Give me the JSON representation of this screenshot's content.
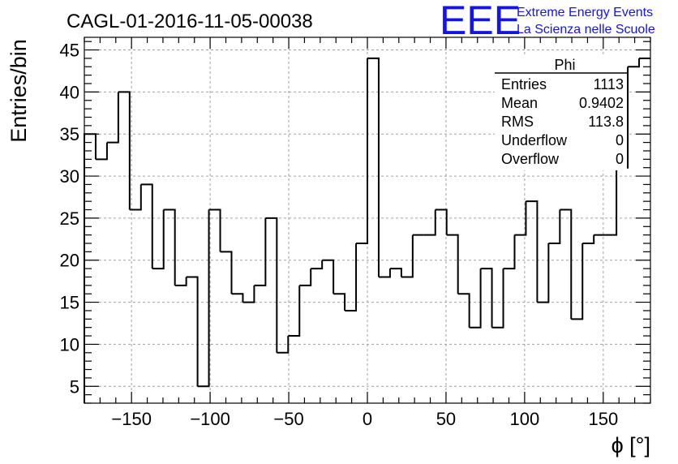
{
  "chart_data": {
    "type": "histogram",
    "title": "CAGL-01-2016-11-05-00038",
    "xlabel": "ϕ [°]",
    "ylabel": "Entries/bin",
    "xlim": [
      -180,
      180
    ],
    "ylim": [
      3,
      46.5
    ],
    "bin_width": 7.2,
    "bin_edges_start": -180,
    "values": [
      35,
      32,
      34,
      40,
      26,
      29,
      19,
      26,
      17,
      18,
      5,
      26,
      21,
      16,
      15,
      17,
      25,
      9,
      11,
      17,
      19,
      20,
      16,
      14,
      22,
      44,
      18,
      19,
      18,
      23,
      23,
      26,
      23,
      16,
      12,
      19,
      12,
      19,
      23,
      27,
      15,
      22,
      26,
      13,
      22,
      23,
      23,
      31,
      43,
      44
    ],
    "x_ticks": [
      -150,
      -100,
      -50,
      0,
      50,
      100,
      150
    ],
    "x_tick_labels": [
      "−150",
      "−100",
      "−50",
      "0",
      "50",
      "100",
      "150"
    ],
    "y_ticks": [
      5,
      10,
      15,
      20,
      25,
      30,
      35,
      40,
      45
    ],
    "y_tick_labels": [
      "5",
      "10",
      "15",
      "20",
      "25",
      "30",
      "35",
      "40",
      "45"
    ],
    "grid": true,
    "stats_box": {
      "name": "Phi",
      "rows": [
        {
          "label": "Entries",
          "value": "1113"
        },
        {
          "label": "Mean",
          "value": "0.9402"
        },
        {
          "label": "RMS",
          "value": "113.8"
        },
        {
          "label": "Underflow",
          "value": "0"
        },
        {
          "label": "Overflow",
          "value": "0"
        }
      ]
    }
  },
  "logo": {
    "mark": "EEE",
    "line1": "Extreme Energy Events",
    "line2": "La Scienza nelle Scuole"
  }
}
